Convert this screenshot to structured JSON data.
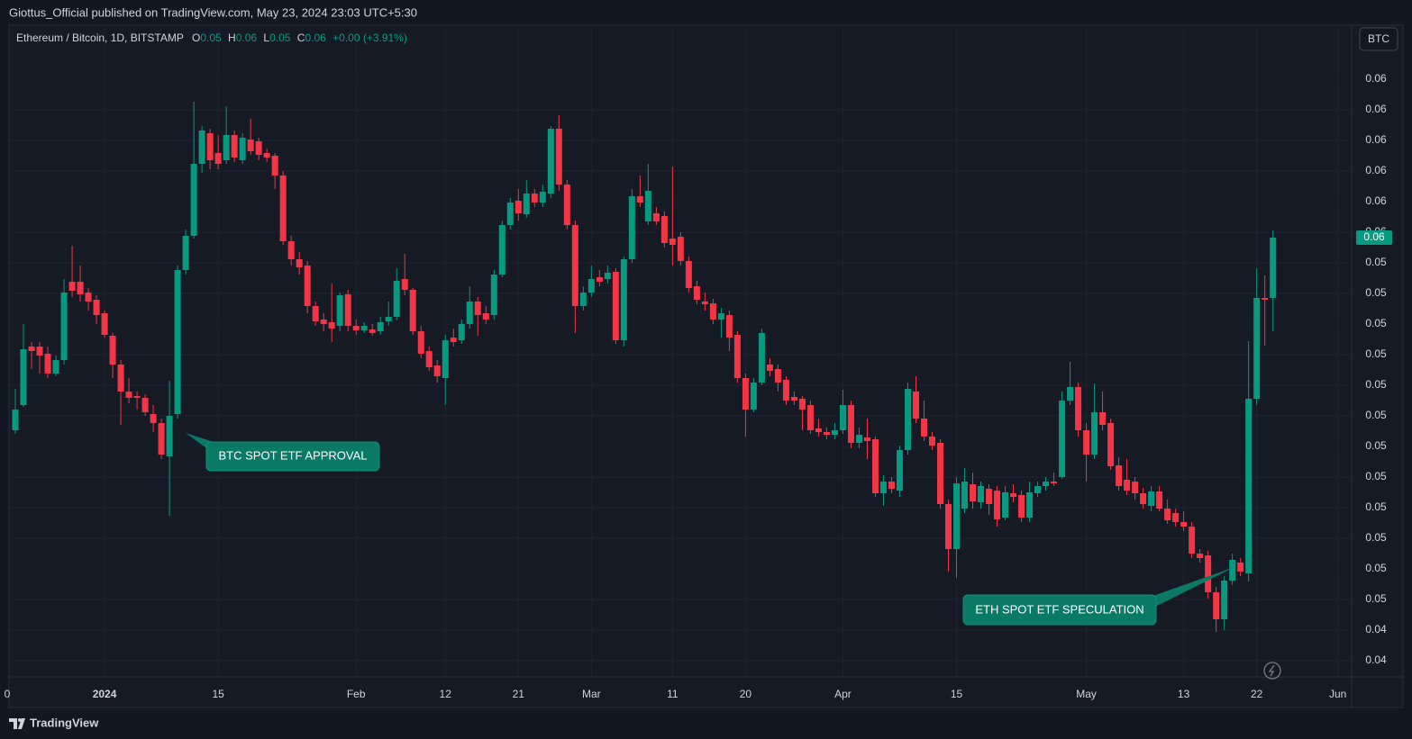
{
  "header": {
    "title": "Giottus_Official published on TradingView.com, May 23, 2024 23:03 UTC+5:30"
  },
  "legend": {
    "symbol": "Ethereum / Bitcoin, 1D, BITSTAMP",
    "ohlc": [
      {
        "key": "O",
        "value": "0.05"
      },
      {
        "key": "H",
        "value": "0.06"
      },
      {
        "key": "L",
        "value": "0.05"
      },
      {
        "key": "C",
        "value": "0.06"
      }
    ],
    "change": "+0.00 (+3.91%)"
  },
  "currency_button": "BTC",
  "footer": {
    "brand": "TradingView"
  },
  "chart_data": {
    "type": "candlestick",
    "up_color": "#089981",
    "down_color": "#f23645",
    "grid": true,
    "last_price_label": "0.06",
    "annotations": [
      {
        "text": "BTC SPOT ETF APPROVAL"
      },
      {
        "text": "ETH SPOT ETF SPECULATION"
      }
    ],
    "xlim": [
      -11.78,
      153.7
    ],
    "xticks": [
      {
        "value": -12,
        "label": "0"
      },
      {
        "value": 0,
        "label": "2024"
      },
      {
        "value": 14,
        "label": "15"
      },
      {
        "value": 31,
        "label": "Feb"
      },
      {
        "value": 42,
        "label": "12"
      },
      {
        "value": 51,
        "label": "21"
      },
      {
        "value": 60,
        "label": "Mar"
      },
      {
        "value": 70,
        "label": "11"
      },
      {
        "value": 79,
        "label": "20"
      },
      {
        "value": 91,
        "label": "Apr"
      },
      {
        "value": 105,
        "label": "15"
      },
      {
        "value": 121,
        "label": "May"
      },
      {
        "value": 133,
        "label": "13"
      },
      {
        "value": 142,
        "label": "22"
      },
      {
        "value": 152,
        "label": "Jun"
      }
    ],
    "ylim": [
      0.0429,
      0.061
    ],
    "yticks": [
      {
        "value": 0.04335,
        "label": "0.04"
      },
      {
        "value": 0.0442,
        "label": "0.04"
      },
      {
        "value": 0.04505,
        "label": "0.05"
      },
      {
        "value": 0.0459,
        "label": "0.05"
      },
      {
        "value": 0.04675,
        "label": "0.05"
      },
      {
        "value": 0.0476,
        "label": "0.05"
      },
      {
        "value": 0.04845,
        "label": "0.05"
      },
      {
        "value": 0.0493,
        "label": "0.05"
      },
      {
        "value": 0.05015,
        "label": "0.05"
      },
      {
        "value": 0.051,
        "label": "0.05"
      },
      {
        "value": 0.05185,
        "label": "0.05"
      },
      {
        "value": 0.0527,
        "label": "0.05"
      },
      {
        "value": 0.05355,
        "label": "0.05"
      },
      {
        "value": 0.0544,
        "label": "0.05"
      },
      {
        "value": 0.05525,
        "label": "0.06"
      },
      {
        "value": 0.0561,
        "label": "0.06"
      },
      {
        "value": 0.05695,
        "label": "0.06"
      },
      {
        "value": 0.0578,
        "label": "0.06"
      },
      {
        "value": 0.05865,
        "label": "0.06"
      },
      {
        "value": 0.0595,
        "label": "0.06"
      }
    ],
    "x": [
      -11,
      -10,
      -9,
      -8,
      -7,
      -6,
      -5,
      -4,
      -3,
      -2,
      -1,
      0,
      1,
      2,
      3,
      4,
      5,
      6,
      7,
      8,
      9,
      10,
      11,
      12,
      13,
      14,
      15,
      16,
      17,
      18,
      19,
      20,
      21,
      22,
      23,
      24,
      25,
      26,
      27,
      28,
      29,
      30,
      31,
      32,
      33,
      34,
      35,
      36,
      37,
      38,
      39,
      40,
      41,
      42,
      43,
      44,
      45,
      46,
      47,
      48,
      49,
      50,
      51,
      52,
      53,
      54,
      55,
      56,
      57,
      58,
      59,
      60,
      61,
      62,
      63,
      64,
      65,
      66,
      67,
      68,
      69,
      70,
      71,
      72,
      73,
      74,
      75,
      76,
      77,
      78,
      79,
      80,
      81,
      82,
      83,
      84,
      85,
      86,
      87,
      88,
      89,
      90,
      91,
      92,
      93,
      94,
      95,
      96,
      97,
      98,
      99,
      100,
      101,
      102,
      103,
      104,
      105,
      106,
      107,
      108,
      109,
      110,
      111,
      112,
      113,
      114,
      115,
      116,
      117,
      118,
      119,
      120,
      121,
      122,
      123,
      124,
      125,
      126,
      127,
      128,
      129,
      130,
      131,
      132,
      133,
      134,
      135,
      136,
      137,
      138,
      139,
      140,
      141,
      142,
      143,
      144
    ],
    "open": [
      0.04975,
      0.05045,
      0.052075,
      0.052075,
      0.051875,
      0.051325,
      0.0517,
      0.053875,
      0.053875,
      0.053575,
      0.053375,
      0.053,
      0.052375,
      0.051575,
      0.050825,
      0.0507,
      0.05065,
      0.0502,
      0.04995,
      0.049025,
      0.0502,
      0.0542,
      0.05515,
      0.05715,
      0.058,
      0.05745,
      0.05725,
      0.05795,
      0.05725,
      0.057825,
      0.057775,
      0.05745,
      0.057375,
      0.056825,
      0.055,
      0.0545,
      0.054325,
      0.0532,
      0.052825,
      0.05275,
      0.05265,
      0.053525,
      0.05265,
      0.052525,
      0.05255,
      0.0525,
      0.052775,
      0.0529,
      0.05395,
      0.05365,
      0.0525,
      0.05195,
      0.05155,
      0.0512,
      0.052325,
      0.05225,
      0.0527,
      0.053325,
      0.053,
      0.05295,
      0.054075,
      0.05545,
      0.056125,
      0.05575,
      0.056325,
      0.056075,
      0.056325,
      0.058125,
      0.056575,
      0.05545,
      0.0532,
      0.053575,
      0.054,
      0.05395,
      0.05415,
      0.05225,
      0.0545,
      0.05625,
      0.05555,
      0.055775,
      0.0557,
      0.055075,
      0.055125,
      0.05445,
      0.05375,
      0.053325,
      0.053275,
      0.052825,
      0.05295,
      0.0524,
      0.0512,
      0.050325,
      0.051075,
      0.051575,
      0.05145,
      0.05115,
      0.050675,
      0.050625,
      0.05045,
      0.0498,
      0.0497,
      0.049625,
      0.04975,
      0.05045,
      0.0494,
      0.04955,
      0.0495,
      0.048,
      0.048325,
      0.048075,
      0.0492,
      0.050825,
      0.050075,
      0.049575,
      0.0494,
      0.0477,
      0.04645,
      0.047575,
      0.04825,
      0.04775,
      0.048125,
      0.048075,
      0.047325,
      0.048,
      0.04795,
      0.047325,
      0.048,
      0.0482,
      0.048325,
      0.04845,
      0.050575,
      0.05095,
      0.04975,
      0.049075,
      0.05025,
      0.04995,
      0.048775,
      0.048375,
      0.048325,
      0.048,
      0.04765,
      0.04805,
      0.047575,
      0.04745,
      0.0472,
      0.047075,
      0.046325,
      0.046275,
      0.04525,
      0.0445,
      0.045575,
      0.046075,
      0.045775,
      0.050625,
      0.053425,
      0.053425
    ],
    "high": [
      0.0509,
      0.0527,
      0.0522,
      0.0522,
      0.052075,
      0.051825,
      0.05395,
      0.054875,
      0.054325,
      0.0537,
      0.0535,
      0.053075,
      0.05245,
      0.0517,
      0.0512,
      0.050825,
      0.05075,
      0.05045,
      0.050075,
      0.051125,
      0.054325,
      0.055325,
      0.058875,
      0.0582,
      0.058125,
      0.05795,
      0.05875,
      0.058075,
      0.058,
      0.0584,
      0.057875,
      0.057575,
      0.05745,
      0.05695,
      0.05515,
      0.0547,
      0.05445,
      0.053325,
      0.053,
      0.053825,
      0.053575,
      0.05365,
      0.052825,
      0.05275,
      0.0527,
      0.0529,
      0.053325,
      0.05425,
      0.05465,
      0.0537,
      0.05265,
      0.052075,
      0.0517,
      0.0524,
      0.052575,
      0.052825,
      0.05375,
      0.05345,
      0.0532,
      0.0542,
      0.055575,
      0.0562,
      0.05645,
      0.0567,
      0.05645,
      0.056575,
      0.0582,
      0.0585,
      0.0567,
      0.055575,
      0.05375,
      0.054325,
      0.0542,
      0.054325,
      0.05425,
      0.054575,
      0.05645,
      0.056825,
      0.05715,
      0.05595,
      0.055825,
      0.057075,
      0.05525,
      0.054575,
      0.0539,
      0.053575,
      0.0534,
      0.05315,
      0.053075,
      0.0525,
      0.051325,
      0.0512,
      0.052575,
      0.05175,
      0.051575,
      0.05125,
      0.050825,
      0.0507,
      0.050575,
      0.050075,
      0.049825,
      0.04995,
      0.050875,
      0.050575,
      0.049825,
      0.050075,
      0.049575,
      0.0485,
      0.04845,
      0.049325,
      0.051075,
      0.05125,
      0.050575,
      0.0497,
      0.0495,
      0.047825,
      0.04845,
      0.0487,
      0.048575,
      0.048325,
      0.04825,
      0.0482,
      0.0482,
      0.04825,
      0.048075,
      0.048325,
      0.048325,
      0.04845,
      0.048575,
      0.050825,
      0.05165,
      0.051075,
      0.04995,
      0.05105,
      0.050825,
      0.050075,
      0.049,
      0.04895,
      0.04845,
      0.04815,
      0.0482,
      0.0482,
      0.047825,
      0.047575,
      0.0475,
      0.0472,
      0.04645,
      0.0464,
      0.0454,
      0.0457,
      0.046325,
      0.0462,
      0.052225,
      0.05425,
      0.05405,
      0.0553
    ],
    "low": [
      0.04965,
      0.0504,
      0.05145,
      0.051325,
      0.0512,
      0.05125,
      0.051575,
      0.05345,
      0.053325,
      0.053075,
      0.0527,
      0.052325,
      0.0512,
      0.0499,
      0.0505,
      0.050325,
      0.05015,
      0.0497,
      0.04895,
      0.047375,
      0.050075,
      0.054075,
      0.055075,
      0.0569,
      0.057,
      0.057,
      0.05715,
      0.0572,
      0.05715,
      0.0574,
      0.05725,
      0.0572,
      0.05645,
      0.0549,
      0.054325,
      0.054075,
      0.053,
      0.05265,
      0.0525,
      0.0522,
      0.0525,
      0.0525,
      0.0524,
      0.05245,
      0.052375,
      0.0524,
      0.05265,
      0.0528,
      0.0535,
      0.0524,
      0.05175,
      0.0514,
      0.051075,
      0.05045,
      0.052075,
      0.05215,
      0.052575,
      0.052375,
      0.0527,
      0.052825,
      0.054,
      0.055325,
      0.055575,
      0.05565,
      0.05595,
      0.05595,
      0.0562,
      0.0564,
      0.055325,
      0.05245,
      0.053075,
      0.05345,
      0.05375,
      0.053825,
      0.05215,
      0.052075,
      0.0544,
      0.05595,
      0.05545,
      0.05545,
      0.054825,
      0.054325,
      0.054325,
      0.053575,
      0.05325,
      0.053075,
      0.0527,
      0.052325,
      0.05195,
      0.051075,
      0.049575,
      0.05025,
      0.051,
      0.05125,
      0.050825,
      0.05045,
      0.05045,
      0.04975,
      0.04965,
      0.049575,
      0.0495,
      0.0495,
      0.04965,
      0.04925,
      0.04925,
      0.04895,
      0.0479,
      0.04765,
      0.048,
      0.0479,
      0.049075,
      0.04995,
      0.04945,
      0.0492,
      0.047575,
      0.045825,
      0.04565,
      0.04745,
      0.047575,
      0.047575,
      0.0474,
      0.047075,
      0.04725,
      0.04775,
      0.0472,
      0.0472,
      0.0479,
      0.048075,
      0.0482,
      0.0484,
      0.05045,
      0.049575,
      0.048325,
      0.04895,
      0.04975,
      0.04865,
      0.048075,
      0.04795,
      0.047825,
      0.047575,
      0.0475,
      0.0475,
      0.04715,
      0.047075,
      0.04695,
      0.0462,
      0.046075,
      0.045075,
      0.04415,
      0.0442,
      0.04545,
      0.0457,
      0.04555,
      0.05045,
      0.0521,
      0.0525
    ],
    "close": [
      0.050325,
      0.052,
      0.05195,
      0.051825,
      0.051325,
      0.0517,
      0.053575,
      0.053625,
      0.053525,
      0.053325,
      0.05295,
      0.0524,
      0.051575,
      0.050825,
      0.05065,
      0.05065,
      0.05025,
      0.04995,
      0.049075,
      0.05015,
      0.0542,
      0.05515,
      0.05715,
      0.058075,
      0.05725,
      0.05715,
      0.05795,
      0.057325,
      0.057875,
      0.0575,
      0.0574,
      0.057325,
      0.056825,
      0.055,
      0.0545,
      0.054275,
      0.0532,
      0.052775,
      0.0527,
      0.052575,
      0.0535,
      0.05265,
      0.052525,
      0.05265,
      0.05245,
      0.05275,
      0.0529,
      0.0539,
      0.05365,
      0.0525,
      0.051875,
      0.0515,
      0.05125,
      0.05225,
      0.0522,
      0.0527,
      0.053325,
      0.05295,
      0.052825,
      0.054075,
      0.05545,
      0.056075,
      0.055775,
      0.056325,
      0.056075,
      0.056375,
      0.058125,
      0.056575,
      0.05545,
      0.0532,
      0.053575,
      0.05395,
      0.053875,
      0.054125,
      0.05225,
      0.0545,
      0.05625,
      0.056075,
      0.0564,
      0.05555,
      0.05495,
      0.0549,
      0.05445,
      0.0537,
      0.053375,
      0.05325,
      0.052825,
      0.053,
      0.052325,
      0.0512,
      0.050325,
      0.051075,
      0.05245,
      0.0514,
      0.051075,
      0.050575,
      0.050575,
      0.050325,
      0.04975,
      0.0497,
      0.049625,
      0.04975,
      0.05045,
      0.0494,
      0.049625,
      0.04945,
      0.048,
      0.048325,
      0.048125,
      0.0492,
      0.0509,
      0.050075,
      0.049575,
      0.049325,
      0.0477,
      0.04645,
      0.048275,
      0.048325,
      0.047775,
      0.0482,
      0.0477,
      0.047275,
      0.048025,
      0.0479,
      0.047325,
      0.048025,
      0.0482,
      0.048325,
      0.048275,
      0.050575,
      0.05095,
      0.04975,
      0.049075,
      0.05025,
      0.0499,
      0.04875,
      0.0482,
      0.048075,
      0.048,
      0.0477,
      0.04805,
      0.047575,
      0.04725,
      0.0472,
      0.047075,
      0.046325,
      0.0462,
      0.04525,
      0.0445,
      0.045575,
      0.04615,
      0.045825,
      0.050625,
      0.053425,
      0.053375,
      0.0551
    ]
  }
}
